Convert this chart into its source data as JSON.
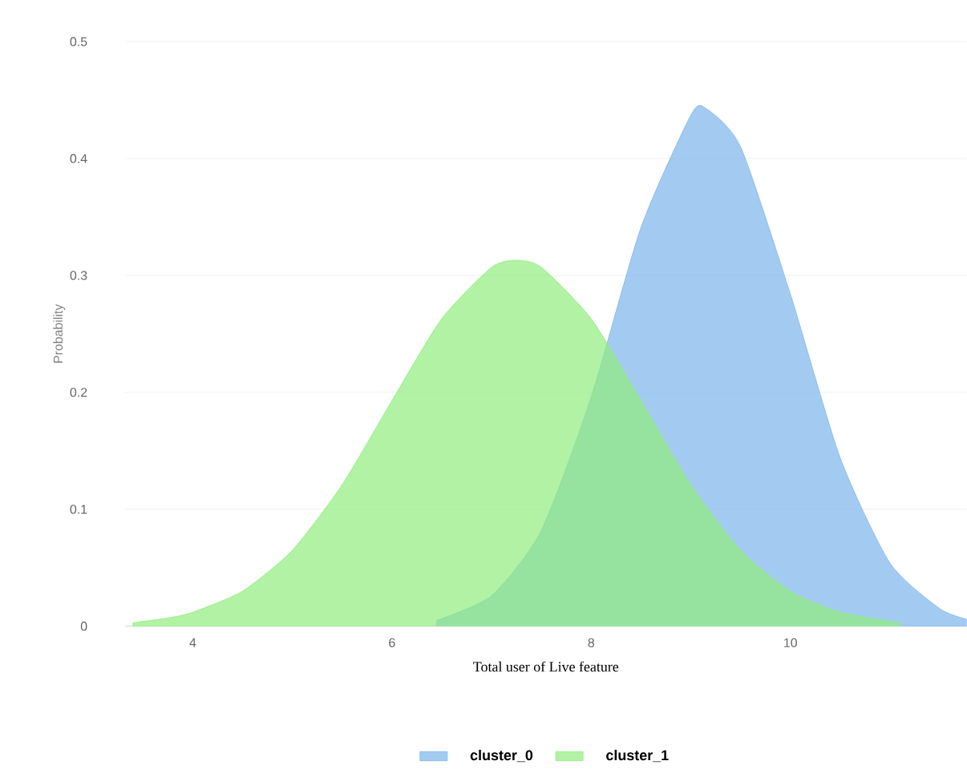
{
  "chart_data": {
    "type": "area",
    "xlabel": "Total user of Live feature",
    "ylabel": "Probability",
    "xlim": [
      3.32,
      11.77
    ],
    "xticks": [
      4,
      6,
      8,
      10
    ],
    "ylim": [
      0,
      0.5
    ],
    "yticks": [
      0,
      0.1,
      0.2,
      0.3,
      0.4,
      0.5
    ],
    "grid": "y",
    "legend": "bottom",
    "marker": "none",
    "series": [
      {
        "name": "cluster_0",
        "color": "#7cb5ec",
        "x": [
          6.45,
          7.0,
          7.5,
          8.0,
          8.5,
          9.0,
          9.15,
          9.5,
          10.0,
          10.5,
          11.0,
          11.5,
          11.77
        ],
        "values": [
          0.005,
          0.026,
          0.082,
          0.196,
          0.341,
          0.437,
          0.443,
          0.41,
          0.284,
          0.144,
          0.054,
          0.015,
          0.006
        ]
      },
      {
        "name": "cluster_1",
        "color": "#90ed7d",
        "x": [
          3.4,
          3.75,
          4.0,
          4.5,
          5.0,
          5.5,
          6.0,
          6.5,
          7.0,
          7.25,
          7.5,
          8.0,
          8.5,
          9.0,
          9.5,
          10.0,
          10.5,
          11.1
        ],
        "values": [
          0.003,
          0.007,
          0.012,
          0.03,
          0.065,
          0.121,
          0.193,
          0.263,
          0.307,
          0.313,
          0.307,
          0.263,
          0.193,
          0.121,
          0.065,
          0.03,
          0.012,
          0.003
        ]
      }
    ]
  }
}
